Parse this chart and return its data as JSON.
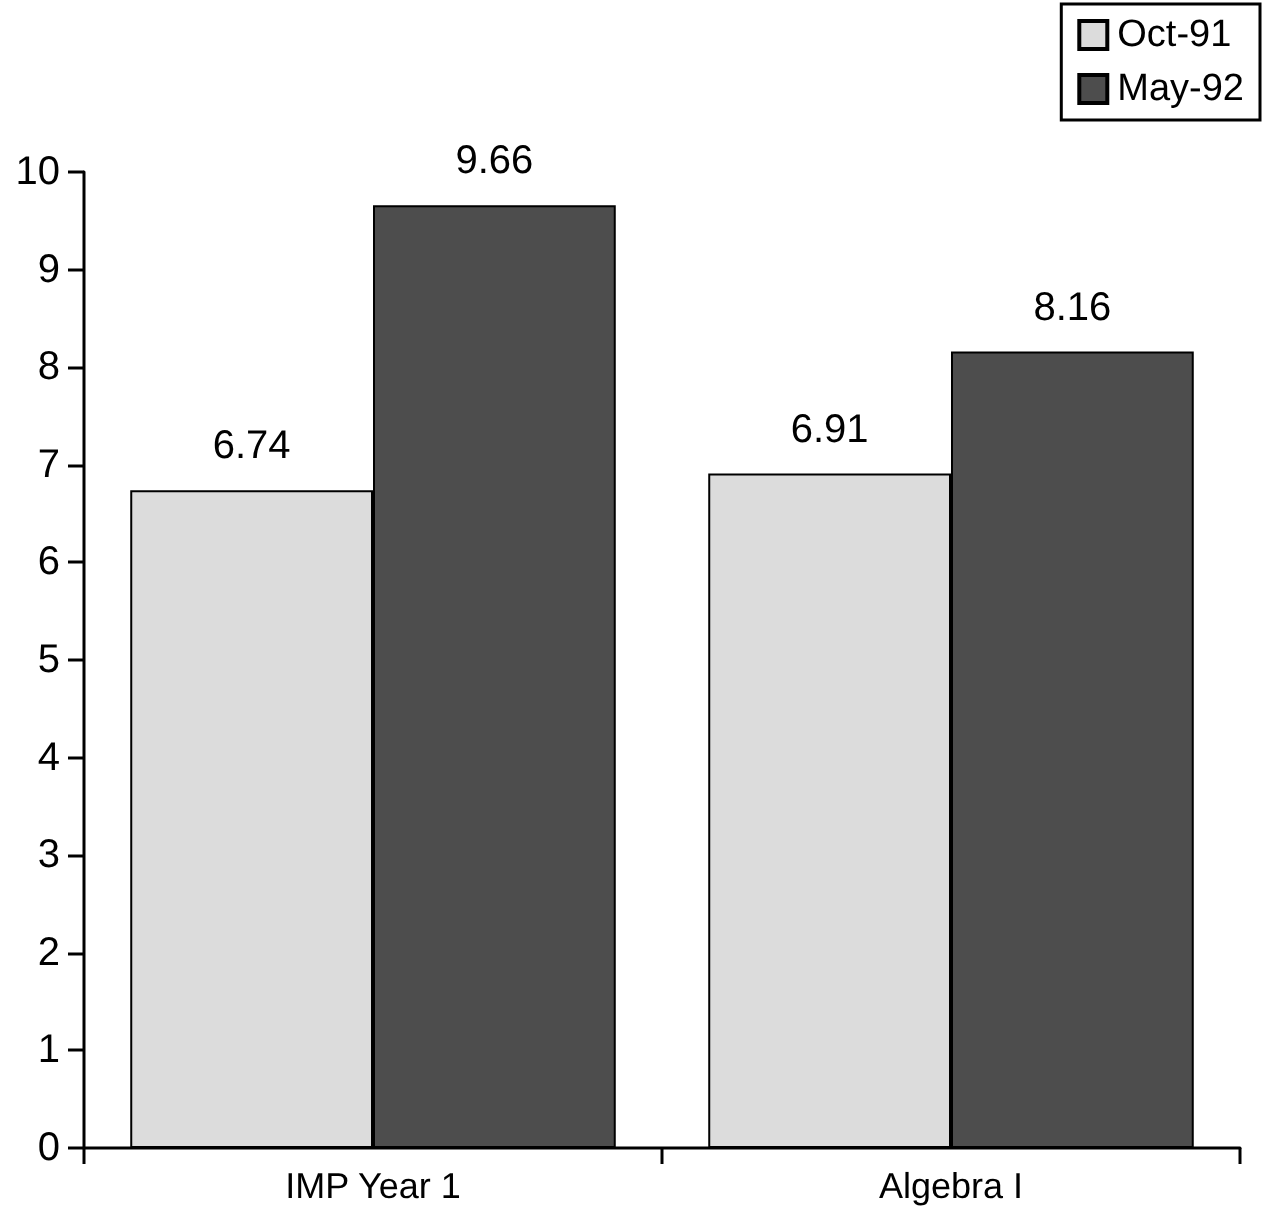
{
  "chart_data": {
    "type": "bar",
    "categories": [
      "IMP Year 1",
      "Algebra I"
    ],
    "series": [
      {
        "name": "Oct-91",
        "color": "#dcdcdc",
        "values": [
          6.74,
          6.91
        ]
      },
      {
        "name": "May-92",
        "color": "#4d4d4d",
        "values": [
          9.66,
          8.16
        ]
      }
    ],
    "ylim": [
      0,
      10
    ],
    "yticks": [
      0,
      1,
      2,
      3,
      4,
      5,
      6,
      7,
      8,
      9,
      10
    ],
    "grid": false,
    "legend": "top right",
    "data_labels": true
  }
}
